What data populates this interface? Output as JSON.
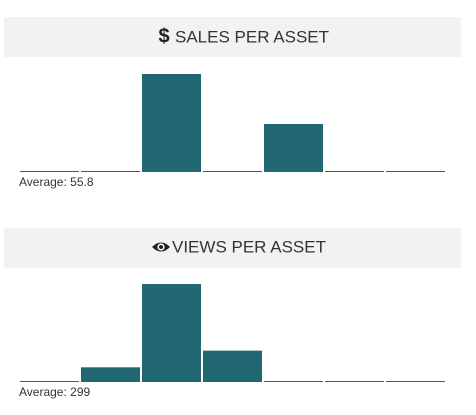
{
  "chart_data": [
    {
      "type": "bar",
      "icon": "$",
      "title": "SALES PER ASSET",
      "values": [
        0,
        0,
        100,
        0,
        49,
        0,
        0
      ],
      "color": "#216872",
      "footer": "Average: 55.8"
    },
    {
      "type": "bar",
      "title": "VIEWS PER ASSET",
      "values": [
        0,
        15,
        100,
        32,
        0,
        0,
        0
      ],
      "color": "#216872",
      "footer": "Average: 299"
    }
  ]
}
